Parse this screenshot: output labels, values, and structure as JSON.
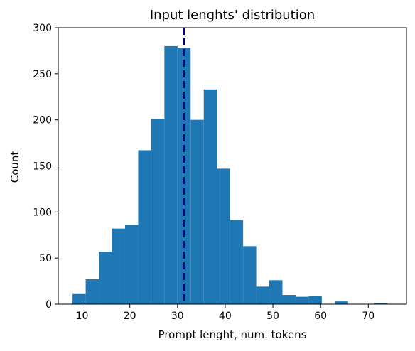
{
  "chart_data": {
    "type": "bar",
    "title": "Input lenghts' distribution",
    "xlabel": "Prompt lenght, num. tokens",
    "ylabel": "Count",
    "xlim": [
      5,
      78
    ],
    "ylim": [
      0,
      300
    ],
    "x_ticks": [
      10,
      20,
      30,
      40,
      50,
      60,
      70
    ],
    "y_ticks": [
      0,
      50,
      100,
      150,
      200,
      250,
      300
    ],
    "bin_edges": [
      8.0,
      10.75,
      13.5,
      16.25,
      19.0,
      21.75,
      24.5,
      27.25,
      30.0,
      32.75,
      35.5,
      38.25,
      41.0,
      43.75,
      46.5,
      49.25,
      52.0,
      54.75,
      57.5,
      60.25,
      63.0,
      65.75,
      68.5,
      71.25,
      74.0
    ],
    "counts": [
      11,
      27,
      57,
      82,
      86,
      167,
      201,
      280,
      278,
      200,
      233,
      147,
      91,
      63,
      19,
      26,
      10,
      8,
      9,
      0,
      3,
      0,
      0,
      1
    ],
    "mean_line": 31.3,
    "colors": {
      "bars": "#1f77b4",
      "mean_line": "#00008b"
    },
    "grid": false
  }
}
